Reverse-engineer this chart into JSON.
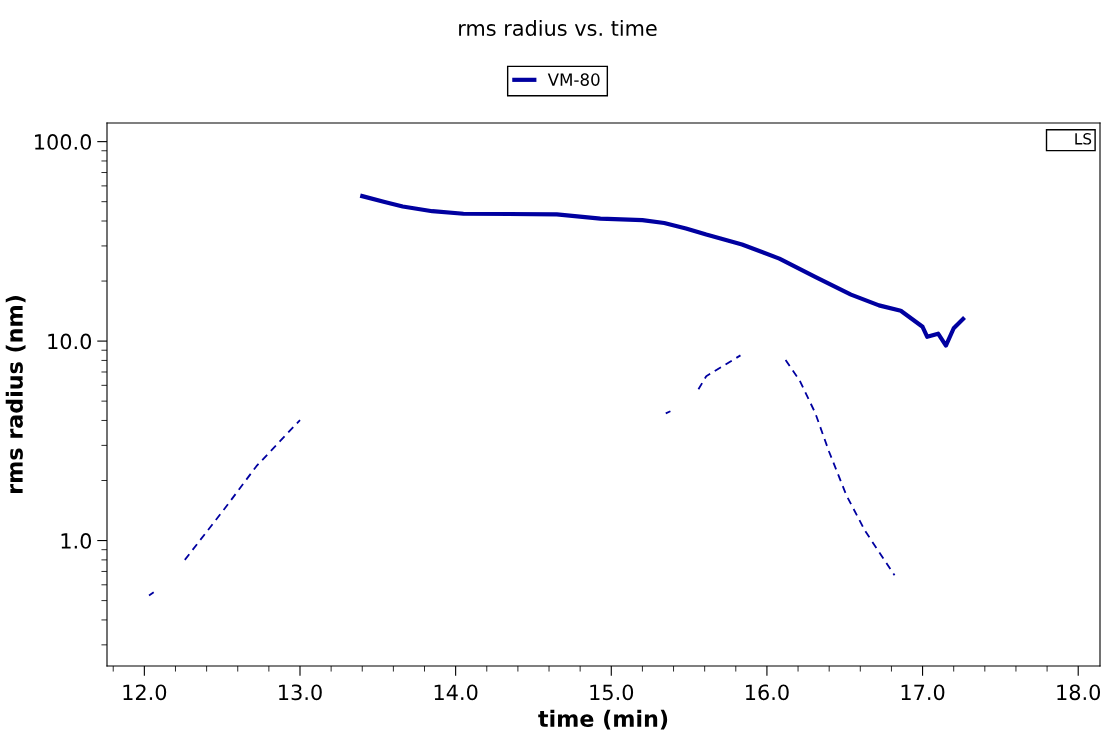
{
  "chart_data": {
    "type": "line",
    "title": "rms radius vs. time",
    "xlabel": "time (min)",
    "ylabel": "rms radius (nm)",
    "log": "y",
    "xlim": [
      11.76,
      18.14
    ],
    "ylim": [
      0.235,
      124
    ],
    "xticks": [
      {
        "value": 12,
        "label": "12.0"
      },
      {
        "value": 13,
        "label": "13.0"
      },
      {
        "value": 14,
        "label": "14.0"
      },
      {
        "value": 15,
        "label": "15.0"
      },
      {
        "value": 16,
        "label": "16.0"
      },
      {
        "value": 17,
        "label": "17.0"
      },
      {
        "value": 18,
        "label": "18.0"
      }
    ],
    "yticks": [
      {
        "value": 1,
        "label": "1.0"
      },
      {
        "value": 10,
        "label": "10.0"
      },
      {
        "value": 100,
        "label": "100.0"
      }
    ],
    "legend": "top",
    "grid": false,
    "annotations": [
      "LS"
    ],
    "series": [
      {
        "name": "VM-80",
        "color": "#0000a0",
        "line_style": "solid",
        "x": [
          13.4,
          13.55,
          13.66,
          13.85,
          14.05,
          14.65,
          14.93,
          15.2,
          15.34,
          15.48,
          15.61,
          15.84,
          16.08,
          16.31,
          16.54,
          16.72,
          16.86,
          17.0,
          17.03,
          17.1,
          17.15,
          17.2,
          17.26
        ],
        "values": [
          53.3,
          49.7,
          47.3,
          44.8,
          43.5,
          43.2,
          41.1,
          40.4,
          39.1,
          36.7,
          34.2,
          30.5,
          25.9,
          21.0,
          17.1,
          15.1,
          14.2,
          11.8,
          10.5,
          10.9,
          9.5,
          11.6,
          12.9
        ]
      },
      {
        "color": "#0000a0",
        "line_style": "dashed",
        "x": [
          12.03,
          12.06,
          12.1,
          12.26,
          12.52,
          12.72,
          13.0,
          13.2,
          15.35,
          15.38,
          15.45,
          15.56,
          15.61,
          15.83,
          16.0,
          16.12,
          16.21,
          16.31,
          16.4,
          16.51,
          16.63,
          16.82
        ],
        "values": [
          0.53,
          0.55,
          null,
          0.8,
          1.46,
          2.36,
          4.02,
          null,
          4.34,
          4.45,
          null,
          5.73,
          6.67,
          8.48,
          null,
          8.03,
          6.35,
          4.37,
          2.78,
          1.69,
          1.12,
          0.67
        ]
      }
    ]
  }
}
